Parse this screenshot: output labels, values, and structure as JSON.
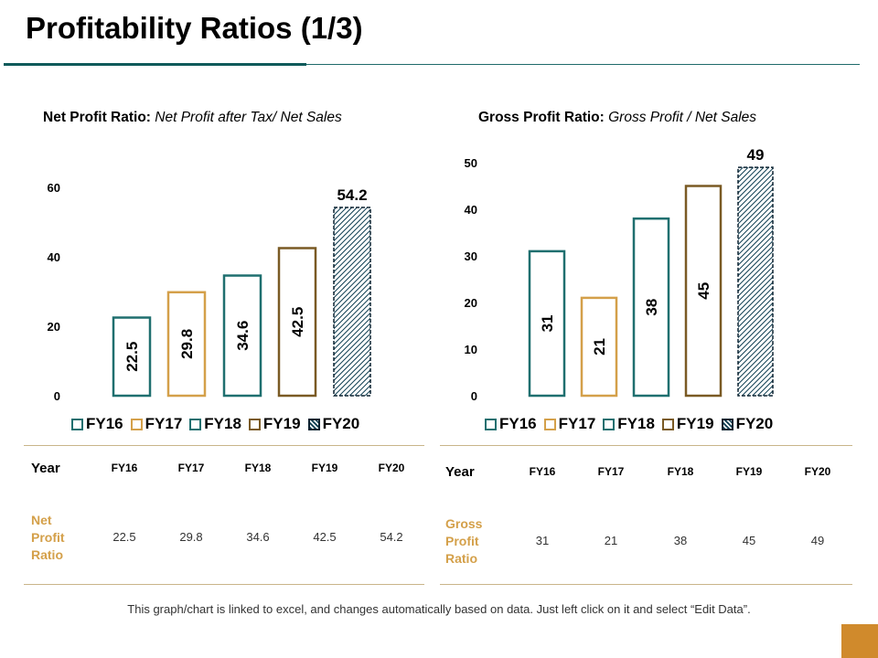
{
  "slide": {
    "title": "Profitability Ratios (1/3)",
    "footnote": "This graph/chart is linked to excel, and changes automatically based on data.  Just left click on it and select “Edit Data”."
  },
  "colors": {
    "FY16": "#1f6f6f",
    "FY17": "#d4a04a",
    "FY18": "#1f6f6f",
    "FY19": "#7a5a24",
    "FY20": "#0b3b4f",
    "accent": "#d08a2c"
  },
  "chart_data": [
    {
      "type": "bar",
      "title_bold": "Net Profit Ratio:",
      "title_italic": "Net Profit after Tax/ Net Sales",
      "categories": [
        "FY16",
        "FY17",
        "FY18",
        "FY19",
        "FY20"
      ],
      "values": [
        22.5,
        29.8,
        34.6,
        42.5,
        54.2
      ],
      "value_labels": [
        "22.5",
        "29.8",
        "34.6",
        "42.5",
        "54.2"
      ],
      "y_ticks": [
        "0",
        "20",
        "40",
        "60"
      ],
      "ylim": [
        0,
        60
      ],
      "legend": [
        "FY16",
        "FY17",
        "FY18",
        "FY19",
        "FY20"
      ],
      "legend_placement": "bottom"
    },
    {
      "type": "bar",
      "title_bold": "Gross Profit Ratio:",
      "title_italic": "Gross Profit / Net Sales",
      "categories": [
        "FY16",
        "FY17",
        "FY18",
        "FY19",
        "FY20"
      ],
      "values": [
        31,
        21,
        38,
        45,
        49
      ],
      "value_labels": [
        "31",
        "21",
        "38",
        "45",
        "49"
      ],
      "y_ticks": [
        "0",
        "10",
        "20",
        "30",
        "40",
        "50"
      ],
      "ylim": [
        0,
        50
      ],
      "legend": [
        "FY16",
        "FY17",
        "FY18",
        "FY19",
        "FY20"
      ],
      "legend_placement": "bottom"
    }
  ],
  "tables": [
    {
      "year_label": "Year",
      "headers": [
        "FY16",
        "FY17",
        "FY18",
        "FY19",
        "FY20"
      ],
      "row_label": "Net Profit Ratio",
      "values": [
        "22.5",
        "29.8",
        "34.6",
        "42.5",
        "54.2"
      ]
    },
    {
      "year_label": "Year",
      "headers": [
        "FY16",
        "FY17",
        "FY18",
        "FY19",
        "FY20"
      ],
      "row_label": "Gross Profit Ratio",
      "values": [
        "31",
        "21",
        "38",
        "45",
        "49"
      ]
    }
  ]
}
